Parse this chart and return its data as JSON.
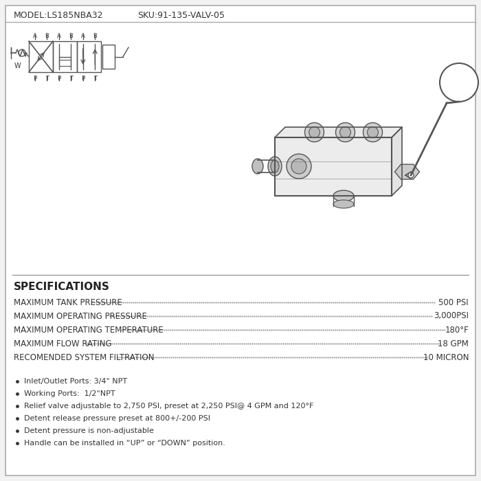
{
  "bg_color": "#f0f0f0",
  "border_color": "#cccccc",
  "line_color": "#555555",
  "text_color": "#333333",
  "model_text": "MODEL:LS185NBA32",
  "sku_text": "SKU:91-135-VALV-05",
  "specs_title": "SPECIFICATIONS",
  "spec_rows": [
    [
      "MAXIMUM TANK PRESSURE",
      "500 PSI"
    ],
    [
      "MAXIMUM OPERATING PRESSURE",
      "3,000PSI"
    ],
    [
      "MAXIMUM OPERATING TEMPERATURE",
      "180°F"
    ],
    [
      "MAXIMUM FLOW RATING",
      "18 GPM"
    ],
    [
      "RECOMENDED SYSTEM FILTRATION",
      "10 MICRON"
    ]
  ],
  "bullet_points": [
    "Inlet/Outlet Ports: 3/4\" NPT",
    "Working Ports:  1/2\"NPT",
    "Relief valve adjustable to 2,750 PSI, preset at 2,250 PSI@ 4 GPM and 120°F",
    "Detent release pressure preset at 800+/-200 PSI",
    "Detent pressure is non-adjustable",
    "Handle can be installed in “UP” or “DOWN” position."
  ]
}
